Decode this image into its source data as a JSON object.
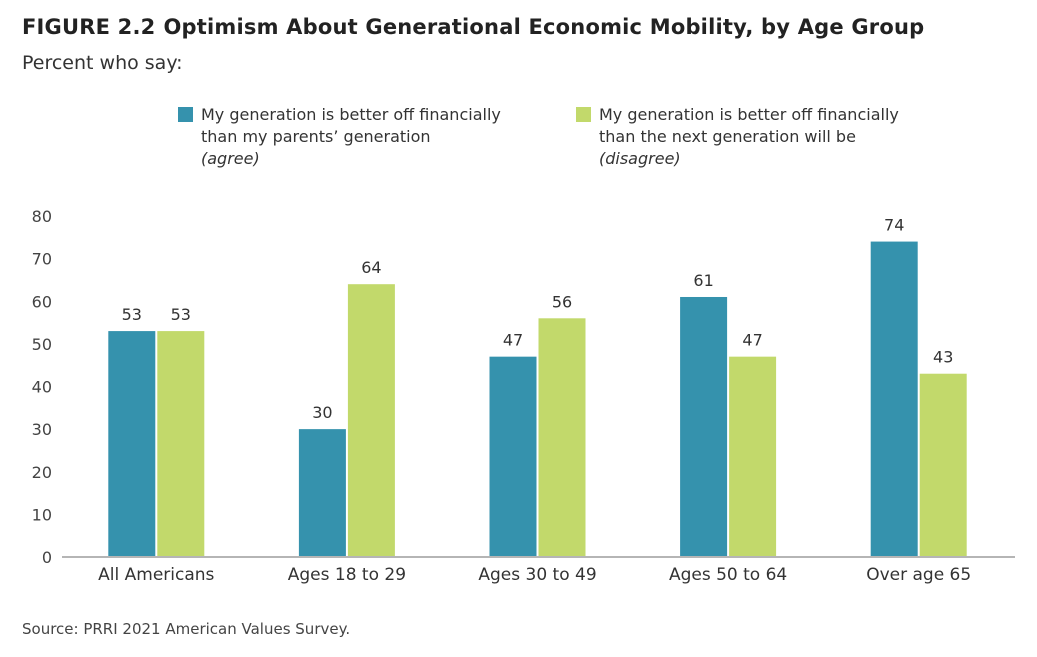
{
  "figure": {
    "number": "FIGURE 2.2",
    "title": "Optimism About Generational Economic Mobility, by Age Group",
    "subtitle": "Percent who say:",
    "source": "Source: PRRI 2021 American Values Survey."
  },
  "legend": [
    {
      "line1": "My generation is better off financially",
      "line2": "than my parents’ generation",
      "line3": "(agree)",
      "color": "#3592ad"
    },
    {
      "line1": "My generation is better off financially",
      "line2": "than the next generation will be",
      "line3": "(disagree)",
      "color": "#c2d96b"
    }
  ],
  "chart_data": {
    "type": "bar",
    "categories": [
      "All Americans",
      "Ages 18 to 29",
      "Ages 30 to 49",
      "Ages 50 to 64",
      "Over age 65"
    ],
    "series": [
      {
        "name": "My generation is better off financially than my parents’ generation (agree)",
        "values": [
          53,
          30,
          47,
          61,
          74
        ],
        "color": "#3592ad"
      },
      {
        "name": "My generation is better off financially than the next generation will be (disagree)",
        "values": [
          53,
          64,
          56,
          47,
          43
        ],
        "color": "#c2d96b"
      }
    ],
    "yticks": [
      0,
      10,
      20,
      30,
      40,
      50,
      60,
      70,
      80
    ],
    "ylim": [
      0,
      80
    ],
    "xlabel": "",
    "ylabel": "",
    "grid": false,
    "legend_position": "top"
  }
}
